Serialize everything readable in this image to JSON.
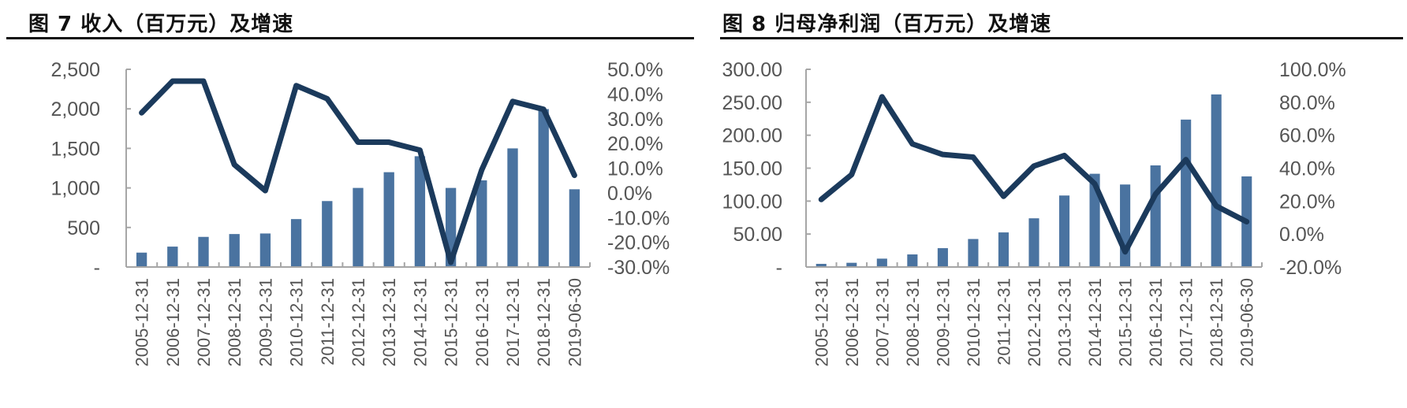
{
  "figures": [
    {
      "title": "图 7  收入（百万元）及增速",
      "fig_no": "图 7",
      "caption": "收入（百万元）及增速"
    },
    {
      "title": "图 8  归母净利润（百万元）及增速",
      "fig_no": "图 8",
      "caption": "归母净利润（百万元）及增速"
    }
  ],
  "colors": {
    "bar": "#4a73a0",
    "line": "#1b3a5c",
    "axis": "#a6a6a6",
    "tick_text": "#555555",
    "title_rule": "#111111"
  },
  "chart_data": [
    {
      "type": "bar+line",
      "title": "图 7 收入（百万元）及增速",
      "categories": [
        "2005-12-31",
        "2006-12-31",
        "2007-12-31",
        "2008-12-31",
        "2009-12-31",
        "2010-12-31",
        "2011-12-31",
        "2012-12-31",
        "2013-12-31",
        "2014-12-31",
        "2015-12-31",
        "2016-12-31",
        "2017-12-31",
        "2018-12-31",
        "2019-06-30"
      ],
      "series": [
        {
          "name": "收入（百万元）",
          "type": "bar",
          "axis": "left",
          "values": [
            182,
            258,
            381,
            417,
            424,
            606,
            834,
            1000,
            1199,
            1401,
            1000,
            1096,
            1500,
            1997,
            983
          ]
        },
        {
          "name": "增速",
          "type": "line",
          "axis": "right",
          "values": [
            32.4,
            45.2,
            45.2,
            11.4,
            0.9,
            43.4,
            38.1,
            20.5,
            20.5,
            17.3,
            -28.1,
            9.3,
            37.0,
            33.8,
            7.1
          ]
        }
      ],
      "left_axis": {
        "ylim": [
          0,
          2500
        ],
        "ticks": [
          "-",
          "500",
          "1,000",
          "1,500",
          "2,000",
          "2,500"
        ]
      },
      "right_axis": {
        "ylim": [
          -30,
          50
        ],
        "ticks": [
          "-30.0%",
          "-20.0%",
          "-10.0%",
          "0.0%",
          "10.0%",
          "20.0%",
          "30.0%",
          "40.0%",
          "50.0%"
        ]
      },
      "xlabel": "",
      "ylabel": "",
      "grid": false,
      "legend": "none"
    },
    {
      "type": "bar+line",
      "title": "图 8 归母净利润（百万元）及增速",
      "categories": [
        "2005-12-31",
        "2006-12-31",
        "2007-12-31",
        "2008-12-31",
        "2009-12-31",
        "2010-12-31",
        "2011-12-31",
        "2012-12-31",
        "2013-12-31",
        "2014-12-31",
        "2015-12-31",
        "2016-12-31",
        "2017-12-31",
        "2018-12-31",
        "2019-06-30"
      ],
      "series": [
        {
          "name": "归母净利润（百万元）",
          "type": "bar",
          "axis": "left",
          "values": [
            4.8,
            6.4,
            12.7,
            19.1,
            28.6,
            42.5,
            52.5,
            73.9,
            108.5,
            141.5,
            125.2,
            154.2,
            223.7,
            261.9,
            137.5
          ]
        },
        {
          "name": "增速",
          "type": "line",
          "axis": "right",
          "values": [
            21.0,
            36.1,
            83.3,
            54.7,
            48.3,
            46.7,
            22.9,
            41.3,
            47.7,
            30.5,
            -10.8,
            24.2,
            45.2,
            17.0,
            7.5
          ]
        }
      ],
      "left_axis": {
        "ylim": [
          0,
          300
        ],
        "ticks": [
          "-",
          "50.00",
          "100.00",
          "150.00",
          "200.00",
          "250.00",
          "300.00"
        ]
      },
      "right_axis": {
        "ylim": [
          -20,
          100
        ],
        "ticks": [
          "-20.0%",
          "0.0%",
          "20.0%",
          "40.0%",
          "60.0%",
          "80.0%",
          "100.0%"
        ]
      },
      "xlabel": "",
      "ylabel": "",
      "grid": false,
      "legend": "none"
    }
  ]
}
